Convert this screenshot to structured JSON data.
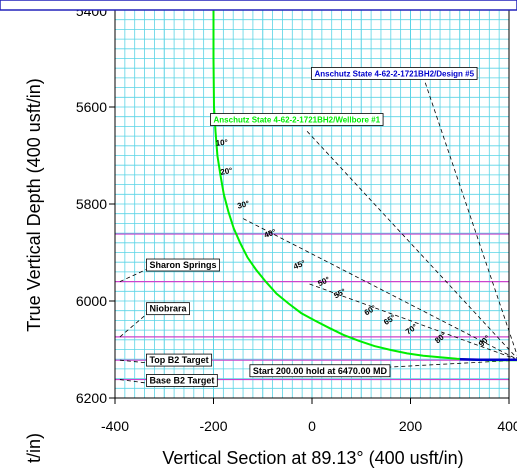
{
  "chart_data": {
    "type": "line",
    "xlabel": "Vertical Section at 89.13° (400 usft/in)",
    "ylabel": "True Vertical Depth (400 usft/in)",
    "bottom_cut_label": "t/in)",
    "top_cut_tick": "5400",
    "xlim": [
      -400,
      400
    ],
    "ylim": [
      6200,
      5400
    ],
    "x_ticks": [
      -400,
      -200,
      0,
      200,
      400
    ],
    "y_ticks": [
      5600,
      5800,
      6000,
      6200
    ],
    "x_tick_labels": [
      "-400",
      "-200",
      "0",
      "200",
      "400"
    ],
    "y_tick_labels": [
      "5600",
      "5800",
      "6000",
      "6200"
    ],
    "grid": true,
    "colors": {
      "background": "#ffffff",
      "grid": "#5ad4e6",
      "wellbore": "#00ee00",
      "design": "#0000cc",
      "formation": "#cc44cc",
      "banner_border": "#2222bb"
    },
    "series": [
      {
        "name": "Anschutz State 4-62-2-1721BH2/Wellbore #1",
        "color": "#00ee00",
        "x": [
          -200,
          -200,
          -199,
          -196,
          -192,
          -186,
          -179,
          -170,
          -159,
          -146,
          -131,
          -114,
          -94,
          -72,
          -48,
          -22,
          5,
          34,
          64,
          95,
          127,
          160,
          193,
          226,
          260,
          294,
          328,
          362,
          396,
          420
        ],
        "y": [
          5400,
          5500,
          5600,
          5650,
          5700,
          5740,
          5780,
          5815,
          5850,
          5880,
          5910,
          5935,
          5960,
          5985,
          6005,
          6025,
          6040,
          6055,
          6070,
          6082,
          6093,
          6101,
          6108,
          6113,
          6116,
          6119,
          6121,
          6122,
          6122,
          6122
        ]
      },
      {
        "name": "Anschutz State 4-62-2-1721BH2/Design #5",
        "color": "#0000cc",
        "x": [
          300,
          340,
          380,
          420
        ],
        "y": [
          6120,
          6121,
          6121,
          6121
        ]
      }
    ],
    "formations": [
      {
        "name": "Sharon Springs",
        "tvd": 5960,
        "marker_x": -390,
        "label_x": -330,
        "label_y": 5932
      },
      {
        "name": "Niobrara",
        "tvd": 6074,
        "marker_x": -390,
        "label_x": -330,
        "label_y": 6022
      },
      {
        "name": "Top B2 Target",
        "tvd": 6122,
        "marker_x": -390,
        "label_x": -330,
        "label_y": 6128
      },
      {
        "name": "Base B2 Target",
        "tvd": 6162,
        "marker_x": -390,
        "label_x": -330,
        "label_y": 6170
      }
    ],
    "extra_lines": [
      {
        "tvd": 5862
      }
    ],
    "inclination_labels": [
      {
        "text": "10°",
        "x": -195,
        "y": 5680,
        "angle": -10
      },
      {
        "text": "20°",
        "x": -185,
        "y": 5740,
        "angle": -20
      },
      {
        "text": "30°",
        "x": -150,
        "y": 5810,
        "angle": -30
      },
      {
        "text": "40°",
        "x": -95,
        "y": 5870,
        "angle": -40
      },
      {
        "text": "45°",
        "x": -35,
        "y": 5935,
        "angle": -45
      },
      {
        "text": "50°",
        "x": 15,
        "y": 5970,
        "angle": -50
      },
      {
        "text": "55°",
        "x": 48,
        "y": 5995,
        "angle": -55
      },
      {
        "text": "60°",
        "x": 110,
        "y": 6030,
        "angle": -60
      },
      {
        "text": "65°",
        "x": 150,
        "y": 6050,
        "angle": -65
      },
      {
        "text": "70°",
        "x": 195,
        "y": 6070,
        "angle": -70
      },
      {
        "text": "80°",
        "x": 255,
        "y": 6088,
        "angle": -80
      },
      {
        "text": "90°",
        "x": 345,
        "y": 6095,
        "angle": -90
      }
    ],
    "annotations": [
      {
        "text": "Start 200.00 hold at 6470.00 MD",
        "x": -120,
        "y": 6150
      }
    ],
    "well_labels": [
      {
        "text": "Anschutz State 4-62-2-1721BH2/Design #5",
        "x": 5,
        "y": 5537,
        "color": "#0000cc"
      },
      {
        "text": "Anschutz State 4-62-2-1721BH2/Wellbore #1",
        "x": -200,
        "y": 5632,
        "color": "#00ee00"
      }
    ]
  }
}
